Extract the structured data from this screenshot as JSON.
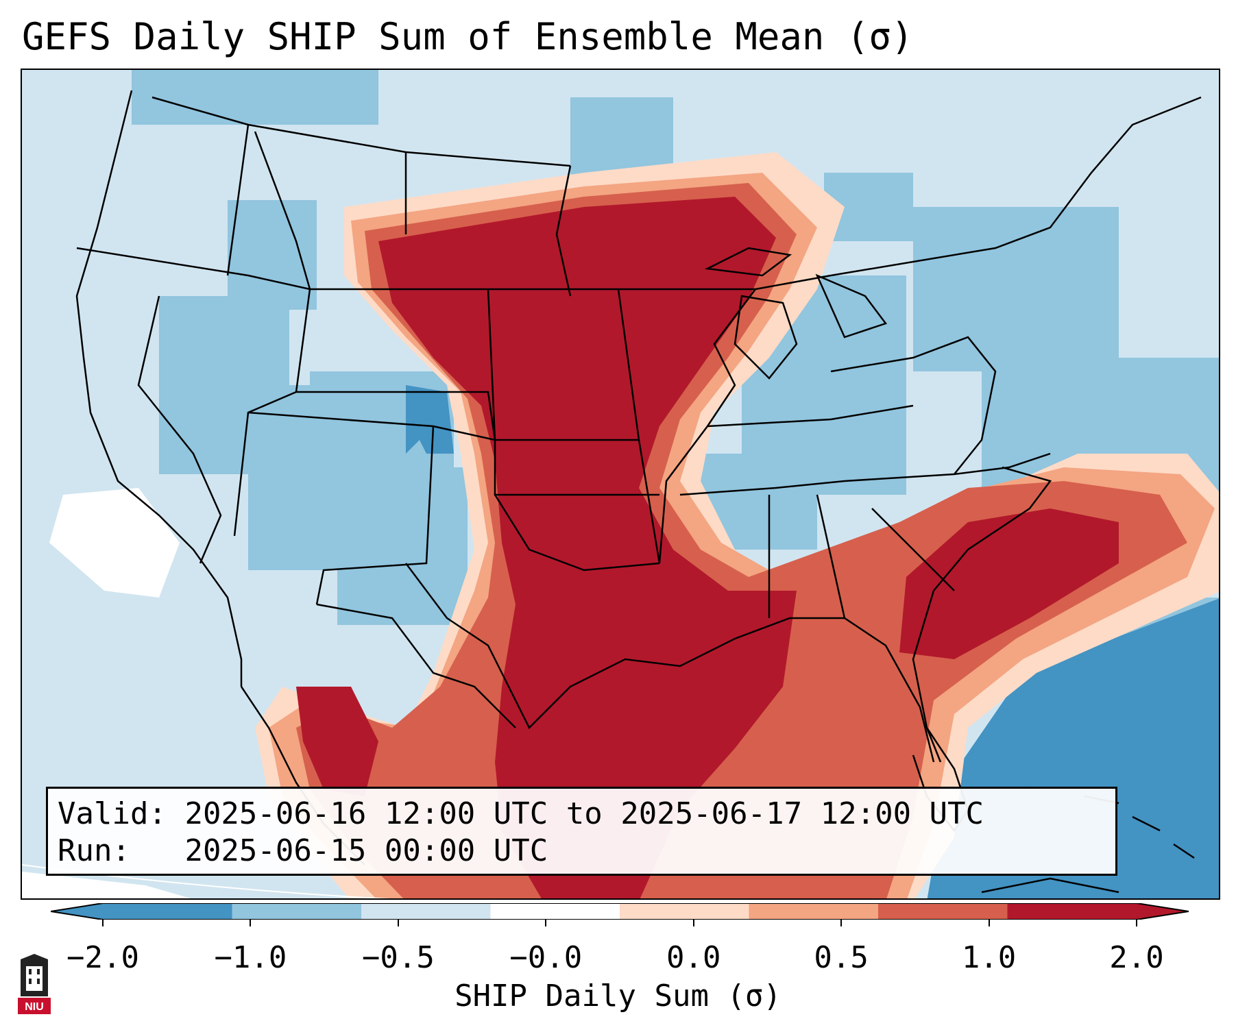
{
  "title": "GEFS Daily SHIP Sum of Ensemble Mean (σ)",
  "info": {
    "valid_label": "Valid:",
    "valid_value": "2025-06-16 12:00 UTC to 2025-06-17 12:00 UTC",
    "run_label": "Run:",
    "run_value": "2025-06-15 00:00 UTC"
  },
  "colorbar": {
    "label": "SHIP Daily Sum (σ)",
    "ticks": [
      "−2.0",
      "−1.0",
      "−0.5",
      "−0.0",
      "0.0",
      "0.5",
      "1.0",
      "2.0"
    ],
    "colors": [
      "#4393c3",
      "#92c5de",
      "#d1e5f0",
      "#ffffff",
      "#fddbc7",
      "#f4a582",
      "#d6604d",
      "#b2182b"
    ]
  },
  "logo": {
    "text": "NIU"
  },
  "map_colors": {
    "background": "#d1e5f0",
    "state_lines": "#000000"
  }
}
